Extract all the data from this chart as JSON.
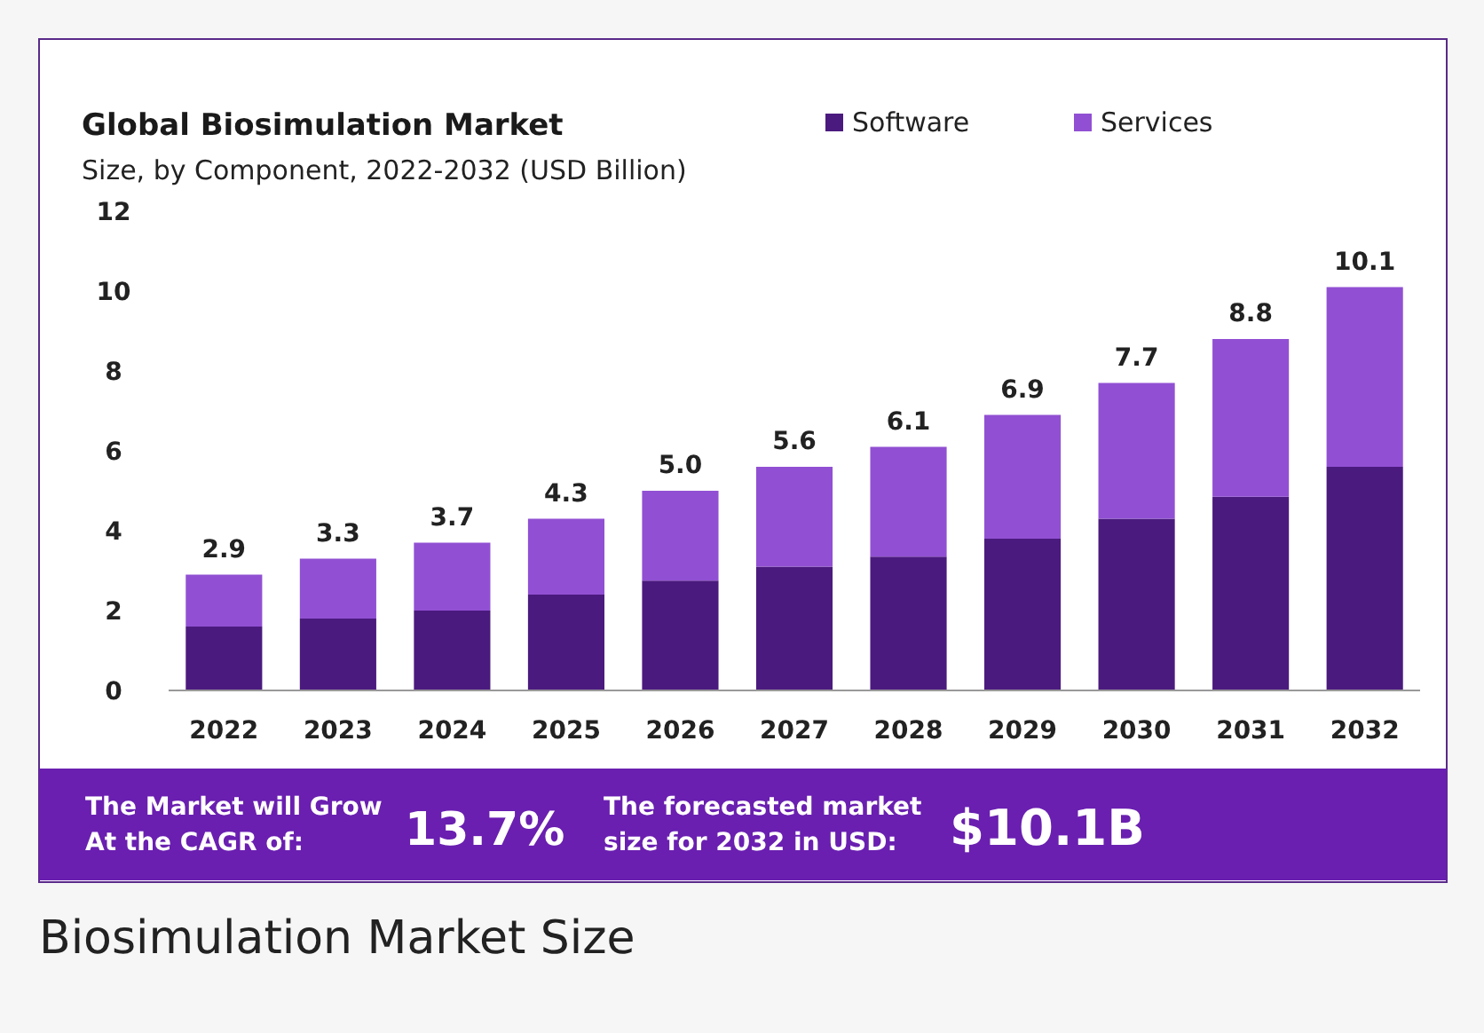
{
  "chart_data": {
    "type": "bar",
    "title": "Global Biosimulation Market",
    "subtitle": "Size, by Component, 2022-2032 (USD Billion)",
    "categories": [
      "2022",
      "2023",
      "2024",
      "2025",
      "2026",
      "2027",
      "2028",
      "2029",
      "2030",
      "2031",
      "2032"
    ],
    "series": [
      {
        "name": "Software",
        "color": "#4b1a7e",
        "values": [
          1.6,
          1.8,
          2.0,
          2.4,
          2.75,
          3.1,
          3.35,
          3.8,
          4.3,
          4.85,
          5.6
        ]
      },
      {
        "name": "Services",
        "color": "#9150d3",
        "values": [
          1.3,
          1.5,
          1.7,
          1.9,
          2.25,
          2.5,
          2.75,
          3.1,
          3.4,
          3.95,
          4.5
        ]
      }
    ],
    "stacked": true,
    "totals": [
      "2.9",
      "3.3",
      "3.7",
      "4.3",
      "5.0",
      "5.6",
      "6.1",
      "6.9",
      "7.7",
      "8.8",
      "10.1"
    ],
    "ylim": [
      0,
      12
    ],
    "yticks": [
      0,
      2,
      4,
      6,
      8,
      10,
      12
    ],
    "grid": false,
    "legend": "top right",
    "annotations": [
      "The Market will Grow At the CAGR of:",
      "13.7%",
      "The forecasted market size for 2032 in USD:",
      "$10.1B",
      "Biosimulation Market Size"
    ]
  }
}
